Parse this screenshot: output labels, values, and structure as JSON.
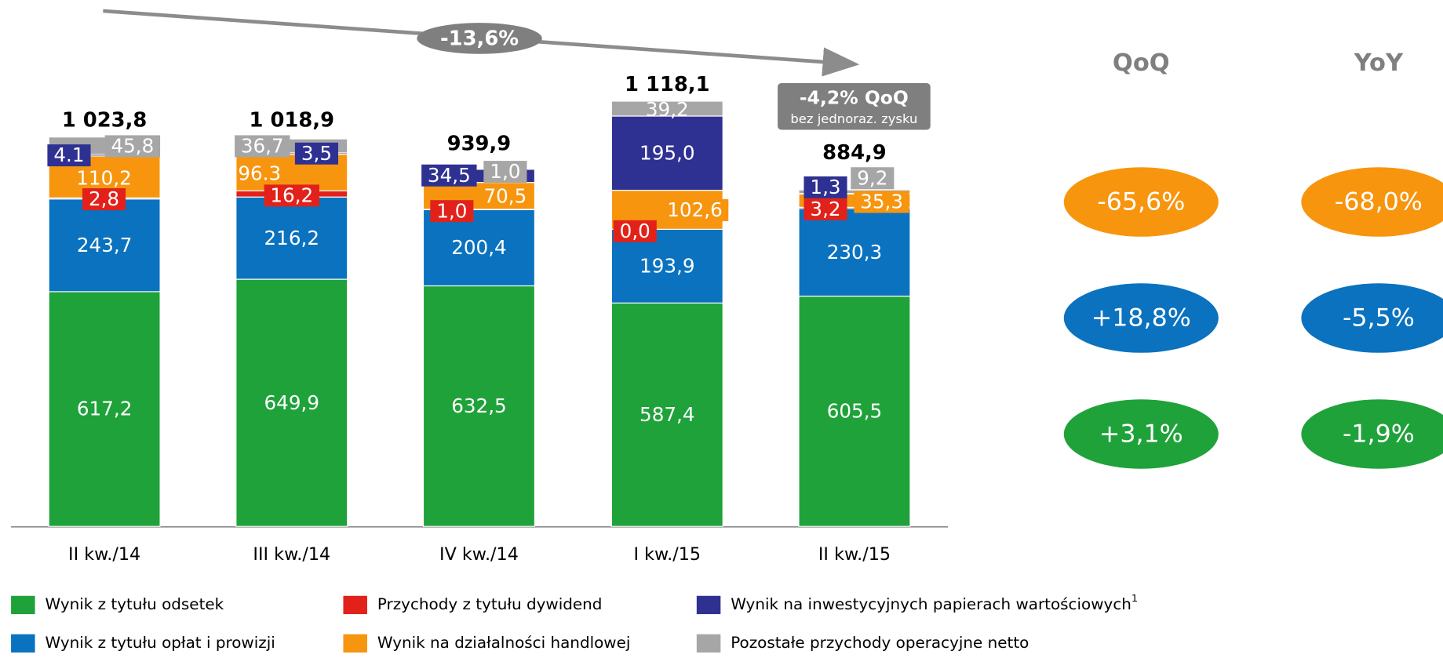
{
  "chart_data": {
    "type": "stacked_bar",
    "categories": [
      "II kw./14",
      "III kw./14",
      "IV kw./14",
      "I kw./15",
      "II kw./15"
    ],
    "series": [
      {
        "name": "Wynik z tytułu odsetek",
        "color": "#1fa23a",
        "values": [
          617.2,
          649.9,
          632.5,
          587.4,
          605.5
        ],
        "value_labels": [
          "617,2",
          "649,9",
          "632,5",
          "587,4",
          "605,5"
        ]
      },
      {
        "name": "Wynik z tytułu opłat i prowizji",
        "color": "#0a72bf",
        "values": [
          243.7,
          216.2,
          200.4,
          193.9,
          230.3
        ],
        "value_labels": [
          "243,7",
          "216,2",
          "200,4",
          "193,9",
          "230,3"
        ]
      },
      {
        "name": "Przychody z tytułu dywidend",
        "color": "#e2221a",
        "values": [
          2.8,
          16.2,
          1.0,
          0.0,
          3.2
        ],
        "value_labels": [
          "2,8",
          "16,2",
          "1,0",
          "0,0",
          "3,2"
        ]
      },
      {
        "name": "Wynik na działalności handlowej",
        "color": "#f7950f",
        "values": [
          110.2,
          96.3,
          70.5,
          102.6,
          35.3
        ],
        "value_labels": [
          "110,2",
          "96.3",
          "70,5",
          "102,6",
          "35,3"
        ]
      },
      {
        "name": "Wynik na inwestycyjnych papierach wartościowych",
        "footnote": "1",
        "color": "#2e3192",
        "values": [
          4.1,
          3.5,
          34.5,
          195.0,
          1.3
        ],
        "value_labels": [
          "4.1",
          "3,5",
          "34,5",
          "195,0",
          "1,3"
        ]
      },
      {
        "name": "Pozostałe przychody operacyjne netto",
        "color": "#a6a6a6",
        "values": [
          45.8,
          36.7,
          1.0,
          39.2,
          9.2
        ],
        "value_labels": [
          "45,8",
          "36,7",
          "1,0",
          "39,2",
          "9,2"
        ]
      }
    ],
    "totals": {
      "values": [
        1023.8,
        1018.9,
        939.9,
        1118.1,
        884.9
      ],
      "value_labels": [
        "1 023,8",
        "1 018,9",
        "939,9",
        "1 118,1",
        "884,9"
      ]
    },
    "ylim": [
      0,
      1300
    ],
    "annotations": {
      "trend": "-13,6%",
      "note_title": "-4,2% QoQ",
      "note_subtitle": "bez jednoraz. zysku"
    },
    "comparison": {
      "headers": [
        "QoQ",
        "YoY"
      ],
      "rows": [
        {
          "color": "#f7950f",
          "values": [
            "-65,6%",
            "-68,0%"
          ]
        },
        {
          "color": "#0a72bf",
          "values": [
            "+18,8%",
            "-5,5%"
          ]
        },
        {
          "color": "#1fa23a",
          "values": [
            "+3,1%",
            "-1,9%"
          ]
        }
      ]
    }
  }
}
